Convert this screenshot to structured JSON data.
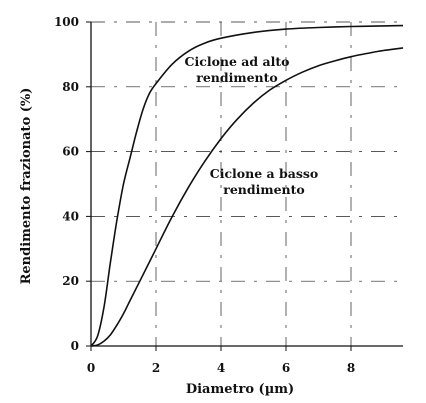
{
  "chart_data": {
    "type": "line",
    "title": "",
    "xlabel": "Diametro (µm)",
    "ylabel": "Rendimento frazionato (%)",
    "xlim": [
      0,
      9.6
    ],
    "ylim": [
      0,
      100
    ],
    "xticks": [
      0,
      2,
      4,
      6,
      8
    ],
    "yticks": [
      0,
      20,
      40,
      60,
      80,
      100
    ],
    "grid": true,
    "legend": "none",
    "series": [
      {
        "annotation": [
          "Ciclone ad alto",
          "rendimento"
        ],
        "x": [
          0,
          0.2,
          0.4,
          0.6,
          0.8,
          1.0,
          1.2,
          1.4,
          1.6,
          1.8,
          2.0,
          2.5,
          3.0,
          3.5,
          4.0,
          5.0,
          6.0,
          7.0,
          8.0,
          9.0,
          9.6
        ],
        "y": [
          0,
          3,
          12,
          26,
          39,
          50,
          58,
          66,
          73,
          78,
          81,
          87,
          91,
          93.5,
          95,
          96.8,
          97.8,
          98.3,
          98.6,
          98.8,
          98.9
        ]
      },
      {
        "annotation": [
          "Ciclone a basso",
          "rendimento"
        ],
        "x": [
          0,
          0.2,
          0.4,
          0.6,
          0.8,
          1.0,
          1.2,
          1.5,
          2.0,
          2.5,
          3.0,
          3.5,
          4.0,
          4.5,
          5.0,
          5.5,
          6.0,
          6.5,
          7.0,
          7.5,
          8.0,
          8.5,
          9.0,
          9.6
        ],
        "y": [
          0,
          0.3,
          1.5,
          3.5,
          6.5,
          10,
          14,
          20,
          30,
          40,
          49,
          57,
          64,
          70,
          75,
          79,
          82,
          84.5,
          86.5,
          88,
          89.3,
          90.3,
          91.2,
          92
        ]
      }
    ]
  }
}
